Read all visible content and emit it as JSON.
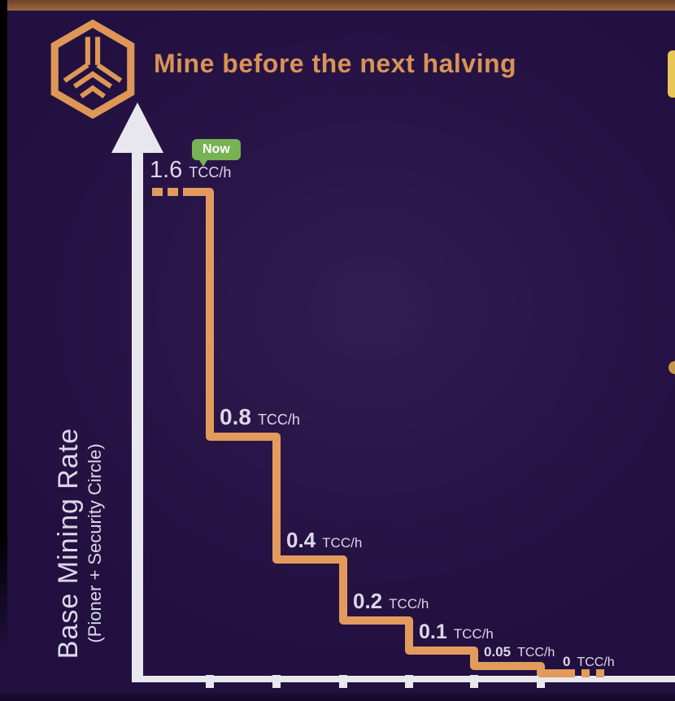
{
  "header": {
    "title": "Mine before the next halving",
    "logo": "tcc-hexagon-cube-logo"
  },
  "badge": {
    "label": "Now"
  },
  "y_axis": {
    "title": "Base Mining Rate",
    "subtitle": "(Pioner + Security Circle)"
  },
  "chart_data": {
    "type": "line",
    "subtype": "step",
    "title": "Mine before the next halving",
    "ylabel": "Base Mining Rate (Pioner + Security Circle)",
    "xlabel": "",
    "unit": "TCC/h",
    "values": [
      1.6,
      0.8,
      0.4,
      0.2,
      0.1,
      0.05,
      0
    ],
    "levels": [
      {
        "num": "1.6",
        "unit": "TCC/h"
      },
      {
        "num": "0.8",
        "unit": "TCC/h"
      },
      {
        "num": "0.4",
        "unit": "TCC/h"
      },
      {
        "num": "0.2",
        "unit": "TCC/h"
      },
      {
        "num": "0.1",
        "unit": "TCC/h"
      },
      {
        "num": "0.05",
        "unit": "TCC/h"
      },
      {
        "num": "0",
        "unit": "TCC/h"
      }
    ],
    "annotations": [
      {
        "label": "Now",
        "at_value": 1.6
      }
    ],
    "x_tick_count": 6,
    "line_style": {
      "color": "#e39b5d",
      "dashed_at_start": true,
      "dashed_at_end": true
    },
    "axis": {
      "y_arrow": true,
      "grid": false,
      "axis_color": "#e9e7ee"
    }
  },
  "colors": {
    "background": "#281446",
    "top_bar": "#8a5a38",
    "accent_orange": "#e39b5d",
    "title_orange": "#d89355",
    "badge_green": "#77b254",
    "axis_white": "#e9e7ee",
    "label_white": "#dcd7e9",
    "edge_yellow": "#eac558"
  }
}
